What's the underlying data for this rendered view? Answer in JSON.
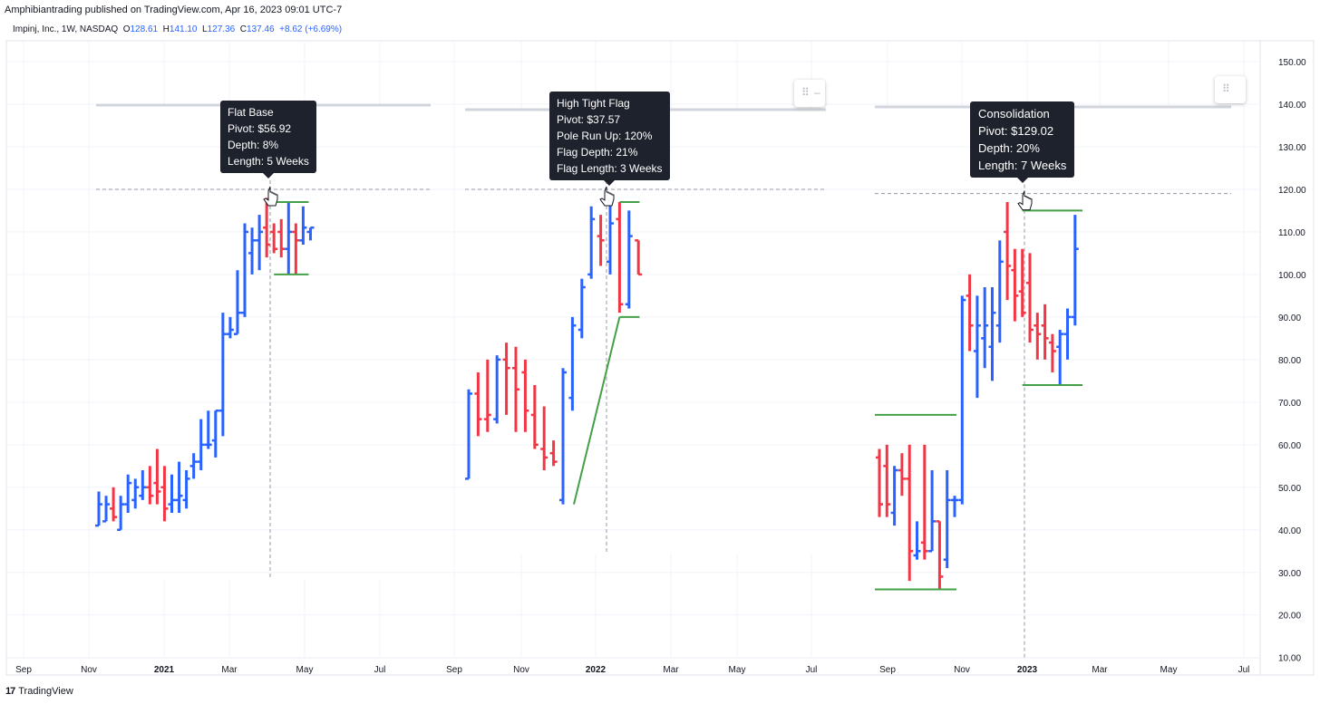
{
  "header": {
    "published_line": "Amphibiantrading published on TradingView.com, Apr 16, 2023 09:01 UTC-7",
    "symbol": "Impinj, Inc., 1W, NASDAQ",
    "open_label": "O",
    "open": "128.61",
    "high_label": "H",
    "high": "141.10",
    "low_label": "L",
    "low": "127.36",
    "close_label": "C",
    "close": "137.46",
    "change": "+8.62 (+6.69%)"
  },
  "footer": {
    "brand": "TradingView"
  },
  "colors": {
    "up": "#2962ff",
    "down": "#f23645",
    "pattern_line": "#43a047",
    "tooltip_bg": "#1e222d",
    "grid": "#f0f3fa"
  },
  "annotations": [
    {
      "lines": [
        "Flat Base",
        "Pivot: $56.92",
        "Depth: 8%",
        "Length: 5 Weeks"
      ]
    },
    {
      "lines": [
        "High Tight Flag",
        "Pivot: $37.57",
        "Pole Run Up: 120%",
        "Flag Depth: 21%",
        "Flag Length: 3 Weeks"
      ]
    },
    {
      "lines": [
        "Consolidation",
        "Pivot: $129.02",
        "Depth: 20%",
        "Length: 7 Weeks"
      ]
    }
  ],
  "chart_data": {
    "type": "ohlc",
    "y_axis": {
      "side": "right",
      "ticks": [
        "150.00",
        "140.00",
        "130.00",
        "120.00",
        "110.00",
        "100.00",
        "90.00",
        "80.00",
        "70.00",
        "60.00",
        "50.00",
        "40.00",
        "30.00",
        "20.00",
        "10.00"
      ],
      "ylim": [
        10,
        150
      ]
    },
    "x_axis_labels": [
      "Sep",
      "Nov",
      "2021",
      "Mar",
      "May",
      "Jul",
      "Sep",
      "Nov",
      "2022",
      "Mar",
      "May",
      "Jul",
      "Sep",
      "Nov",
      "2023",
      "Mar",
      "May",
      "Jul"
    ],
    "panels": [
      {
        "name": "Flat Base",
        "pivot": 120,
        "base_high": 117,
        "base_low": 100,
        "bars": [
          {
            "d": "u",
            "h": 49,
            "l": 41,
            "o": 41,
            "c": 46
          },
          {
            "d": "u",
            "h": 48,
            "l": 42,
            "o": 42,
            "c": 46
          },
          {
            "d": "d",
            "h": 50,
            "l": 42,
            "o": 45,
            "c": 43
          },
          {
            "d": "u",
            "h": 48,
            "l": 40,
            "o": 40,
            "c": 46
          },
          {
            "d": "u",
            "h": 53,
            "l": 44,
            "o": 46,
            "c": 51
          },
          {
            "d": "u",
            "h": 52,
            "l": 45,
            "o": 47,
            "c": 50
          },
          {
            "d": "u",
            "h": 54,
            "l": 47,
            "o": 48,
            "c": 50
          },
          {
            "d": "d",
            "h": 55,
            "l": 46,
            "o": 50,
            "c": 48
          },
          {
            "d": "d",
            "h": 59,
            "l": 46,
            "o": 51,
            "c": 49
          },
          {
            "d": "d",
            "h": 55,
            "l": 42,
            "o": 50,
            "c": 45
          },
          {
            "d": "u",
            "h": 53,
            "l": 44,
            "o": 46,
            "c": 47
          },
          {
            "d": "u",
            "h": 56,
            "l": 44,
            "o": 47,
            "c": 48
          },
          {
            "d": "u",
            "h": 54,
            "l": 45,
            "o": 47,
            "c": 52
          },
          {
            "d": "u",
            "h": 58,
            "l": 52,
            "o": 55,
            "c": 56
          },
          {
            "d": "u",
            "h": 66,
            "l": 54,
            "o": 56,
            "c": 60
          },
          {
            "d": "u",
            "h": 68,
            "l": 59,
            "o": 60,
            "c": 60
          },
          {
            "d": "u",
            "h": 68,
            "l": 57,
            "o": 61,
            "c": 68
          },
          {
            "d": "u",
            "h": 91,
            "l": 62,
            "o": 68,
            "c": 86
          },
          {
            "d": "u",
            "h": 90,
            "l": 85,
            "o": 86,
            "c": 87
          },
          {
            "d": "u",
            "h": 101,
            "l": 86,
            "o": 86,
            "c": 91
          },
          {
            "d": "u",
            "h": 112,
            "l": 90,
            "o": 91,
            "c": 110
          },
          {
            "d": "u",
            "h": 111,
            "l": 100,
            "o": 105,
            "c": 108
          },
          {
            "d": "u",
            "h": 114,
            "l": 101,
            "o": 108,
            "c": 110
          },
          {
            "d": "d",
            "h": 118,
            "l": 104,
            "o": 111,
            "c": 107
          },
          {
            "d": "d",
            "h": 112,
            "l": 105,
            "o": 110,
            "c": 106
          },
          {
            "d": "d",
            "h": 113,
            "l": 104,
            "o": 110,
            "c": 106
          },
          {
            "d": "u",
            "h": 117,
            "l": 100,
            "o": 106,
            "c": 110
          },
          {
            "d": "d",
            "h": 112,
            "l": 100,
            "o": 110,
            "c": 108
          },
          {
            "d": "u",
            "h": 116,
            "l": 107,
            "o": 108,
            "c": 111
          },
          {
            "d": "u",
            "h": 111,
            "l": 108,
            "o": 110,
            "c": 111
          }
        ]
      },
      {
        "name": "High Tight Flag",
        "pivot": 120,
        "flag_high": 117,
        "flag_low": 90,
        "pole_start": 46,
        "bars": [
          {
            "d": "u",
            "h": 73,
            "l": 52,
            "o": 52,
            "c": 72
          },
          {
            "d": "d",
            "h": 77,
            "l": 62,
            "o": 72,
            "c": 66
          },
          {
            "d": "d",
            "h": 80,
            "l": 63,
            "o": 66,
            "c": 67
          },
          {
            "d": "u",
            "h": 81,
            "l": 65,
            "o": 66,
            "c": 80
          },
          {
            "d": "d",
            "h": 84,
            "l": 67,
            "o": 80,
            "c": 78
          },
          {
            "d": "d",
            "h": 83,
            "l": 63,
            "o": 78,
            "c": 73
          },
          {
            "d": "d",
            "h": 80,
            "l": 63,
            "o": 77,
            "c": 68
          },
          {
            "d": "d",
            "h": 74,
            "l": 59,
            "o": 67,
            "c": 60
          },
          {
            "d": "d",
            "h": 69,
            "l": 54,
            "o": 59,
            "c": 57
          },
          {
            "d": "d",
            "h": 61,
            "l": 55,
            "o": 58,
            "c": 56
          },
          {
            "d": "u",
            "h": 78,
            "l": 46,
            "o": 47,
            "c": 77
          },
          {
            "d": "u",
            "h": 90,
            "l": 68,
            "o": 71,
            "c": 88
          },
          {
            "d": "u",
            "h": 99,
            "l": 85,
            "o": 87,
            "c": 97
          },
          {
            "d": "u",
            "h": 116,
            "l": 99,
            "o": 100,
            "c": 113
          },
          {
            "d": "d",
            "h": 114,
            "l": 102,
            "o": 109,
            "c": 108
          },
          {
            "d": "u",
            "h": 117,
            "l": 100,
            "o": 103,
            "c": 112
          },
          {
            "d": "d",
            "h": 117,
            "l": 91,
            "o": 113,
            "c": 93
          },
          {
            "d": "u",
            "h": 115,
            "l": 92,
            "o": 93,
            "c": 109
          },
          {
            "d": "d",
            "h": 108,
            "l": 100,
            "o": 108,
            "c": 100
          }
        ]
      },
      {
        "name": "Consolidation",
        "pivot": 119,
        "base_high": 115,
        "base_low": 74,
        "prior_high": 67,
        "prior_low": 26,
        "bars": [
          {
            "d": "d",
            "h": 59,
            "l": 43,
            "o": 57,
            "c": 46
          },
          {
            "d": "d",
            "h": 60,
            "l": 43,
            "o": 55,
            "c": 46
          },
          {
            "d": "u",
            "h": 55,
            "l": 41,
            "o": 44,
            "c": 54
          },
          {
            "d": "d",
            "h": 58,
            "l": 48,
            "o": 54,
            "c": 52
          },
          {
            "d": "d",
            "h": 60,
            "l": 28,
            "o": 52,
            "c": 35
          },
          {
            "d": "u",
            "h": 42,
            "l": 33,
            "o": 34,
            "c": 35
          },
          {
            "d": "d",
            "h": 60,
            "l": 33,
            "o": 37,
            "c": 35
          },
          {
            "d": "u",
            "h": 54,
            "l": 35,
            "o": 35,
            "c": 42
          },
          {
            "d": "d",
            "h": 42,
            "l": 26,
            "o": 42,
            "c": 29
          },
          {
            "d": "u",
            "h": 54,
            "l": 31,
            "o": 33,
            "c": 47
          },
          {
            "d": "u",
            "h": 48,
            "l": 43,
            "o": 47,
            "c": 47
          },
          {
            "d": "u",
            "h": 95,
            "l": 46,
            "o": 47,
            "c": 94
          },
          {
            "d": "d",
            "h": 100,
            "l": 82,
            "o": 95,
            "c": 88
          },
          {
            "d": "u",
            "h": 95,
            "l": 71,
            "o": 82,
            "c": 88
          },
          {
            "d": "u",
            "h": 97,
            "l": 78,
            "o": 85,
            "c": 88
          },
          {
            "d": "u",
            "h": 97,
            "l": 75,
            "o": 83,
            "c": 91
          },
          {
            "d": "u",
            "h": 108,
            "l": 84,
            "o": 88,
            "c": 103
          },
          {
            "d": "d",
            "h": 117,
            "l": 94,
            "o": 110,
            "c": 102
          },
          {
            "d": "d",
            "h": 106,
            "l": 89,
            "o": 101,
            "c": 95
          },
          {
            "d": "d",
            "h": 106,
            "l": 90,
            "o": 96,
            "c": 91
          },
          {
            "d": "d",
            "h": 105,
            "l": 84,
            "o": 98,
            "c": 87
          },
          {
            "d": "d",
            "h": 91,
            "l": 80,
            "o": 88,
            "c": 86
          },
          {
            "d": "d",
            "h": 93,
            "l": 80,
            "o": 88,
            "c": 85
          },
          {
            "d": "d",
            "h": 86,
            "l": 77,
            "o": 84,
            "c": 82
          },
          {
            "d": "u",
            "h": 87,
            "l": 74,
            "o": 83,
            "c": 86
          },
          {
            "d": "u",
            "h": 92,
            "l": 80,
            "o": 86,
            "c": 90
          },
          {
            "d": "u",
            "h": 114,
            "l": 88,
            "o": 90,
            "c": 106
          }
        ]
      }
    ]
  }
}
